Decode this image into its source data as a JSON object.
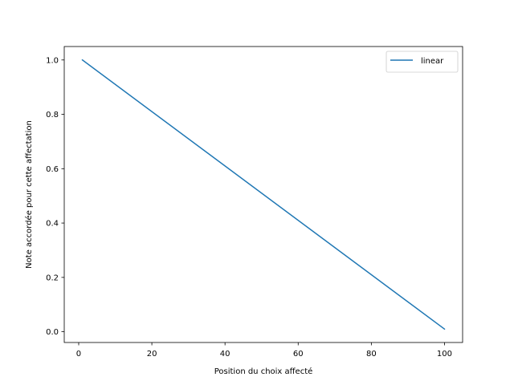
{
  "chart_data": {
    "type": "line",
    "title": "",
    "xlabel": "Position du choix affecté",
    "ylabel": "Note accordée pour cette affectation",
    "xlim": [
      -3.95,
      104.95
    ],
    "ylim": [
      -0.0395,
      1.0495
    ],
    "xticks": [
      0,
      20,
      40,
      60,
      80,
      100
    ],
    "yticks": [
      0.0,
      0.2,
      0.4,
      0.6,
      0.8,
      1.0
    ],
    "xtick_labels": [
      "0",
      "20",
      "40",
      "60",
      "80",
      "100"
    ],
    "ytick_labels": [
      "0.0",
      "0.2",
      "0.4",
      "0.6",
      "0.8",
      "1.0"
    ],
    "grid": false,
    "legend_position": "upper right",
    "series": [
      {
        "name": "linear",
        "color": "#1f77b4",
        "x": [
          1,
          100
        ],
        "y": [
          1.0,
          0.01
        ]
      }
    ]
  }
}
